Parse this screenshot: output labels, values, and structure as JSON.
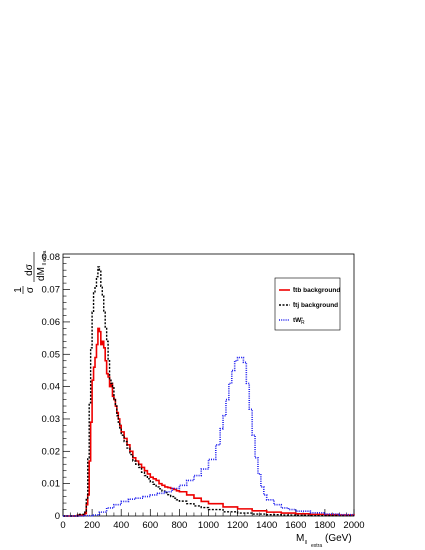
{
  "chart_data": {
    "type": "line",
    "title": "",
    "xlabel": "M_{ll_extra} (GeV)",
    "xlabel_main": "M",
    "xlabel_sub": "ll",
    "xlabel_subsub": "extra",
    "xlabel_unit": "(GeV)",
    "ylabel": "1/σ dσ/dM_{ll_extra}",
    "ylabel_num": "1",
    "ylabel_den": "σ",
    "ylabel_dnum": "dσ",
    "ylabel_dden": "dM",
    "ylabel_sub": "ll extra",
    "xlim": [
      0,
      2000
    ],
    "ylim": [
      0,
      0.081
    ],
    "xticks": [
      "0",
      "200",
      "400",
      "600",
      "800",
      "1000",
      "1200",
      "1400",
      "1600",
      "1800",
      "2000"
    ],
    "yticks": [
      "0",
      "0.01",
      "0.02",
      "0.03",
      "0.04",
      "0.05",
      "0.06",
      "0.07",
      "0.08"
    ],
    "legend_position": "right",
    "grid": false,
    "series": [
      {
        "name": "t̄tb background",
        "color": "#ee0000",
        "style": "solid",
        "x": [
          0,
          100,
          150,
          160,
          170,
          180,
          190,
          200,
          210,
          220,
          230,
          240,
          250,
          260,
          270,
          280,
          290,
          300,
          310,
          320,
          330,
          340,
          350,
          360,
          370,
          380,
          390,
          400,
          420,
          440,
          460,
          480,
          500,
          520,
          540,
          560,
          580,
          600,
          620,
          640,
          660,
          680,
          700,
          720,
          740,
          760,
          780,
          800,
          850,
          900,
          950,
          1000,
          1100,
          1200,
          1300,
          1400,
          1500,
          1600,
          1700,
          1800,
          1900,
          2000
        ],
        "y": [
          0,
          0.0003,
          0.0008,
          0.0035,
          0.0065,
          0.017,
          0.029,
          0.042,
          0.046,
          0.049,
          0.053,
          0.058,
          0.057,
          0.053,
          0.054,
          0.052,
          0.048,
          0.044,
          0.043,
          0.04,
          0.041,
          0.037,
          0.036,
          0.034,
          0.032,
          0.03,
          0.028,
          0.026,
          0.024,
          0.022,
          0.02,
          0.018,
          0.017,
          0.016,
          0.015,
          0.014,
          0.013,
          0.012,
          0.0115,
          0.011,
          0.01,
          0.0095,
          0.009,
          0.0088,
          0.0085,
          0.0082,
          0.0078,
          0.0075,
          0.0065,
          0.0055,
          0.0045,
          0.0038,
          0.0028,
          0.0022,
          0.0016,
          0.0012,
          0.0009,
          0.0007,
          0.0005,
          0.0004,
          0.0003,
          0.0002
        ]
      },
      {
        "name": "t̄tj background",
        "color": "#000000",
        "style": "dashed",
        "x": [
          0,
          100,
          150,
          160,
          170,
          180,
          190,
          200,
          210,
          220,
          230,
          240,
          250,
          260,
          270,
          280,
          290,
          300,
          310,
          320,
          330,
          340,
          350,
          360,
          370,
          380,
          390,
          400,
          420,
          440,
          460,
          480,
          500,
          520,
          540,
          560,
          580,
          600,
          620,
          640,
          660,
          680,
          700,
          720,
          740,
          760,
          780,
          800,
          850,
          900,
          950,
          1000,
          1100,
          1200,
          1300,
          1400,
          1500,
          1600,
          1700,
          1800,
          1900,
          2000
        ],
        "y": [
          0,
          0.0005,
          0.0015,
          0.0055,
          0.018,
          0.035,
          0.052,
          0.063,
          0.069,
          0.071,
          0.074,
          0.077,
          0.076,
          0.071,
          0.068,
          0.063,
          0.058,
          0.054,
          0.048,
          0.042,
          0.041,
          0.04,
          0.036,
          0.034,
          0.031,
          0.029,
          0.027,
          0.025,
          0.023,
          0.021,
          0.019,
          0.017,
          0.016,
          0.015,
          0.0135,
          0.0125,
          0.0115,
          0.0105,
          0.0098,
          0.009,
          0.0084,
          0.0077,
          0.0072,
          0.0066,
          0.006,
          0.0055,
          0.005,
          0.0046,
          0.0038,
          0.0031,
          0.0026,
          0.002,
          0.0013,
          0.0009,
          0.0006,
          0.0004,
          0.0003,
          0.0002,
          0.0001,
          0.0001,
          0.0001,
          0.0001
        ]
      },
      {
        "name": "tW'R",
        "color": "#1a1aee",
        "style": "dotted",
        "x": [
          0,
          150,
          200,
          250,
          300,
          350,
          400,
          450,
          500,
          550,
          600,
          650,
          700,
          750,
          800,
          850,
          900,
          950,
          1000,
          1050,
          1080,
          1100,
          1120,
          1140,
          1160,
          1180,
          1200,
          1220,
          1240,
          1260,
          1280,
          1300,
          1320,
          1340,
          1360,
          1380,
          1400,
          1450,
          1500,
          1550,
          1600,
          1700,
          1800,
          1900,
          2000
        ],
        "y": [
          0,
          0.0001,
          0.0003,
          0.0012,
          0.0025,
          0.0035,
          0.0045,
          0.0052,
          0.0055,
          0.006,
          0.0065,
          0.007,
          0.0075,
          0.0085,
          0.0095,
          0.011,
          0.0125,
          0.0145,
          0.0175,
          0.022,
          0.027,
          0.031,
          0.036,
          0.041,
          0.045,
          0.048,
          0.049,
          0.049,
          0.0475,
          0.041,
          0.033,
          0.025,
          0.018,
          0.013,
          0.009,
          0.0065,
          0.005,
          0.0035,
          0.0025,
          0.002,
          0.0015,
          0.001,
          0.0006,
          0.0004,
          0.0002
        ]
      }
    ]
  },
  "legend": {
    "entries": [
      {
        "label": "t̄tb background",
        "color": "#ee0000",
        "style": "solid"
      },
      {
        "label": "t̄tj background",
        "color": "#000000",
        "style": "dashed"
      },
      {
        "label": "tW'",
        "label_sub": "R",
        "color": "#1a1aee",
        "style": "dotted"
      }
    ]
  }
}
